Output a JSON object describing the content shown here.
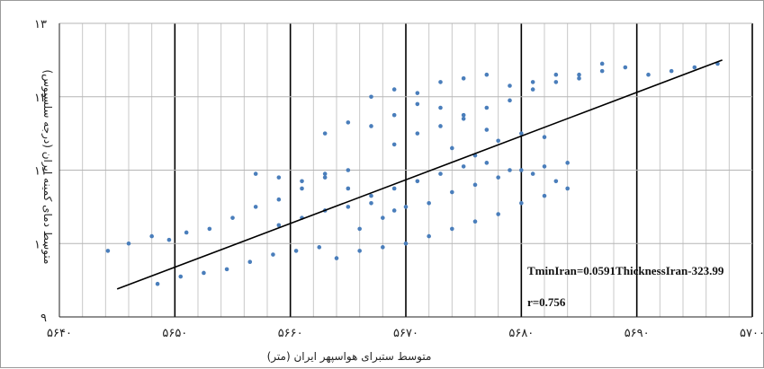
{
  "chart_data": {
    "type": "scatter",
    "xlabel": "متوسط ستبرای هواسپهر ایران (متر)",
    "ylabel": "متوسط دمای کمینه ایران (درجه سلسیوس)",
    "xlim": [
      5640,
      5700
    ],
    "ylim": [
      9,
      13
    ],
    "x_ticks": [
      "۵۶۴۰",
      "۵۶۵۰",
      "۵۶۶۰",
      "۵۶۷۰",
      "۵۶۸۰",
      "۵۶۹۰",
      "۵۷۰۰"
    ],
    "y_ticks": [
      "۹",
      "۱۰",
      "۱۱",
      "۱۲",
      "۱۳"
    ],
    "grid": true,
    "series": [
      {
        "color": "#4a7ebb",
        "marker": "dot",
        "points": [
          [
            5644.2,
            9.9
          ],
          [
            5646.0,
            10.0
          ],
          [
            5648.0,
            10.1
          ],
          [
            5649.5,
            10.05
          ],
          [
            5651.0,
            10.15
          ],
          [
            5653.0,
            10.2
          ],
          [
            5655.0,
            10.35
          ],
          [
            5657.0,
            10.5
          ],
          [
            5659.0,
            10.6
          ],
          [
            5661.0,
            10.75
          ],
          [
            5663.0,
            10.9
          ],
          [
            5665.0,
            11.0
          ],
          [
            5659.0,
            10.25
          ],
          [
            5661.0,
            10.35
          ],
          [
            5663.0,
            10.45
          ],
          [
            5665.0,
            10.5
          ],
          [
            5667.0,
            10.55
          ],
          [
            5669.0,
            10.45
          ],
          [
            5648.5,
            9.45
          ],
          [
            5650.5,
            9.55
          ],
          [
            5652.5,
            9.6
          ],
          [
            5654.5,
            9.65
          ],
          [
            5656.5,
            9.75
          ],
          [
            5658.5,
            9.85
          ],
          [
            5660.5,
            9.9
          ],
          [
            5662.5,
            9.95
          ],
          [
            5664.0,
            9.8
          ],
          [
            5666.0,
            9.9
          ],
          [
            5668.0,
            9.95
          ],
          [
            5670.0,
            10.0
          ],
          [
            5672.0,
            10.1
          ],
          [
            5674.0,
            10.2
          ],
          [
            5676.0,
            10.3
          ],
          [
            5678.0,
            10.4
          ],
          [
            5680.0,
            10.55
          ],
          [
            5682.0,
            10.65
          ],
          [
            5684.0,
            10.75
          ],
          [
            5666.0,
            10.2
          ],
          [
            5668.0,
            10.35
          ],
          [
            5670.0,
            10.5
          ],
          [
            5672.0,
            10.55
          ],
          [
            5674.0,
            10.7
          ],
          [
            5676.0,
            10.8
          ],
          [
            5678.0,
            10.9
          ],
          [
            5680.0,
            11.0
          ],
          [
            5682.0,
            11.05
          ],
          [
            5684.0,
            11.1
          ],
          [
            5669.0,
            11.35
          ],
          [
            5671.0,
            11.5
          ],
          [
            5673.0,
            11.6
          ],
          [
            5675.0,
            11.75
          ],
          [
            5677.0,
            11.85
          ],
          [
            5679.0,
            11.95
          ],
          [
            5681.0,
            12.1
          ],
          [
            5683.0,
            12.2
          ],
          [
            5685.0,
            12.3
          ],
          [
            5687.0,
            12.35
          ],
          [
            5689.0,
            12.4
          ],
          [
            5691.0,
            12.3
          ],
          [
            5693.0,
            12.35
          ],
          [
            5695.0,
            12.4
          ],
          [
            5697.0,
            12.45
          ],
          [
            5667.0,
            12.0
          ],
          [
            5669.0,
            12.1
          ],
          [
            5671.0,
            12.05
          ],
          [
            5673.0,
            12.2
          ],
          [
            5675.0,
            12.25
          ],
          [
            5677.0,
            12.3
          ],
          [
            5679.0,
            12.15
          ],
          [
            5681.0,
            12.2
          ],
          [
            5683.0,
            12.3
          ],
          [
            5685.0,
            12.25
          ],
          [
            5687.0,
            12.45
          ],
          [
            5663.0,
            11.5
          ],
          [
            5665.0,
            11.65
          ],
          [
            5667.0,
            11.6
          ],
          [
            5669.0,
            11.75
          ],
          [
            5671.0,
            11.9
          ],
          [
            5673.0,
            11.85
          ],
          [
            5675.0,
            11.7
          ],
          [
            5677.0,
            11.55
          ],
          [
            5674.0,
            11.3
          ],
          [
            5676.0,
            11.2
          ],
          [
            5678.0,
            11.4
          ],
          [
            5680.0,
            11.5
          ],
          [
            5682.0,
            11.45
          ],
          [
            5657.0,
            10.95
          ],
          [
            5659.0,
            10.9
          ],
          [
            5661.0,
            10.85
          ],
          [
            5663.0,
            10.95
          ],
          [
            5665.0,
            10.75
          ],
          [
            5667.0,
            10.65
          ],
          [
            5669.0,
            10.75
          ],
          [
            5671.0,
            10.85
          ],
          [
            5673.0,
            10.95
          ],
          [
            5675.0,
            11.05
          ],
          [
            5677.0,
            11.1
          ],
          [
            5679.0,
            11.0
          ],
          [
            5681.0,
            10.95
          ],
          [
            5683.0,
            10.85
          ]
        ]
      }
    ],
    "trendline": {
      "color": "#000000",
      "points": [
        [
          5645.0,
          9.38
        ],
        [
          5697.4,
          12.5
        ]
      ]
    },
    "annotations": [
      "TminIran=0.0591ThicknessIran-323.99",
      "r=0.756"
    ]
  }
}
